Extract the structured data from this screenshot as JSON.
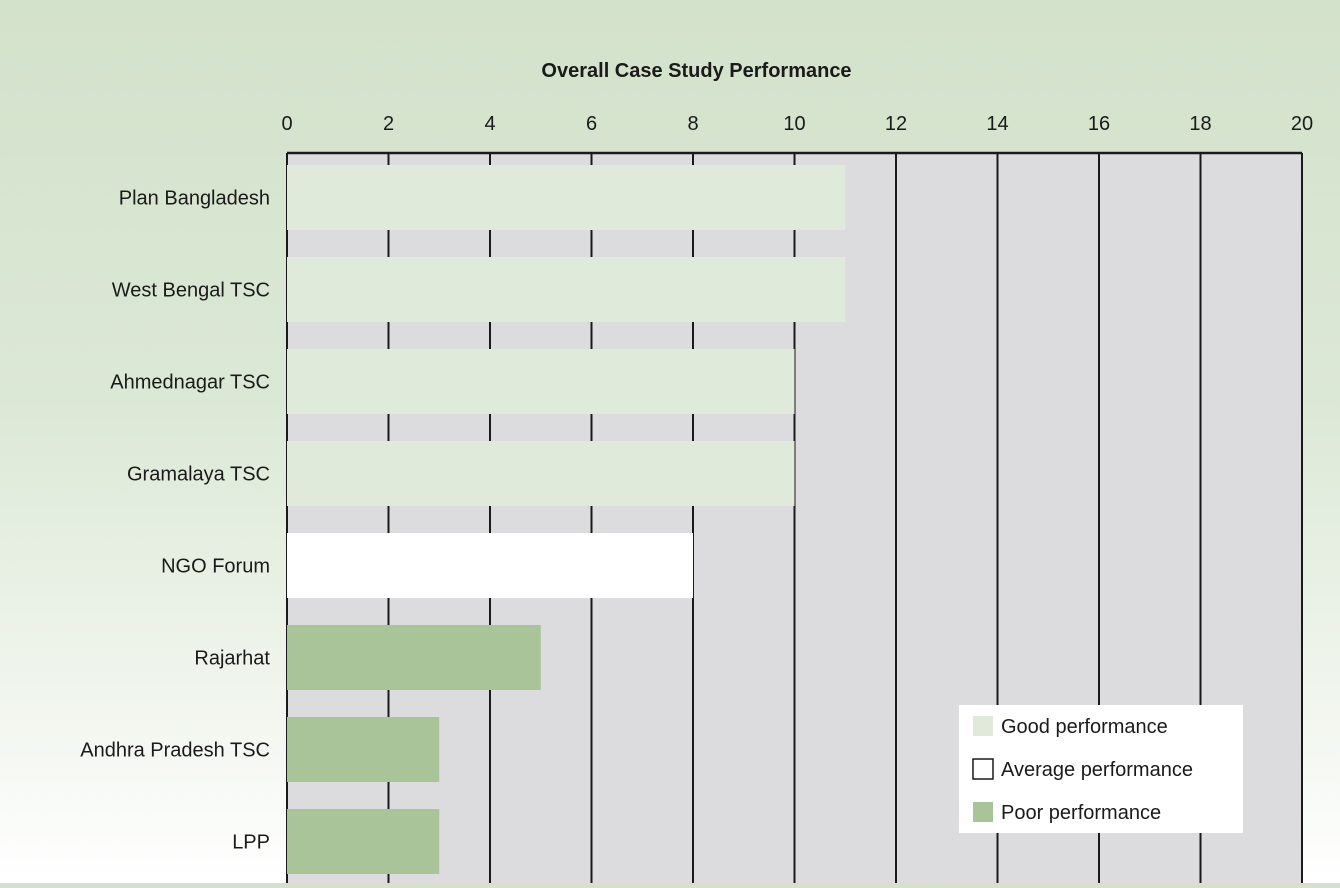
{
  "chart_data": {
    "type": "bar",
    "orientation": "horizontal",
    "title": "Overall Case Study Performance",
    "xlabel": "",
    "ylabel": "",
    "xlim": [
      0,
      20
    ],
    "x_ticks": [
      0,
      2,
      4,
      6,
      8,
      10,
      12,
      14,
      16,
      18,
      20
    ],
    "axis_position": "top",
    "grid": true,
    "categories": [
      "Plan Bangladesh",
      "West Bengal TSC",
      "Ahmednagar TSC",
      "Gramalaya TSC",
      "NGO Forum",
      "Rajarhat",
      "Andhra Pradesh TSC",
      "LPP"
    ],
    "values": [
      11,
      11,
      10,
      10,
      8,
      5,
      3,
      3
    ],
    "performance_class": [
      "good",
      "good",
      "good",
      "good",
      "average",
      "poor",
      "poor",
      "poor"
    ],
    "legend_position": "bottom-right",
    "legend": [
      {
        "key": "good",
        "label": "Good performance",
        "color": "#dfeadb"
      },
      {
        "key": "average",
        "label": "Average performance",
        "color": "#ffffff"
      },
      {
        "key": "poor",
        "label": "Poor performance",
        "color": "#a8c498"
      }
    ],
    "colors": {
      "plot_background": "#dcdcdf",
      "gridline": "#1a1a1a"
    }
  }
}
